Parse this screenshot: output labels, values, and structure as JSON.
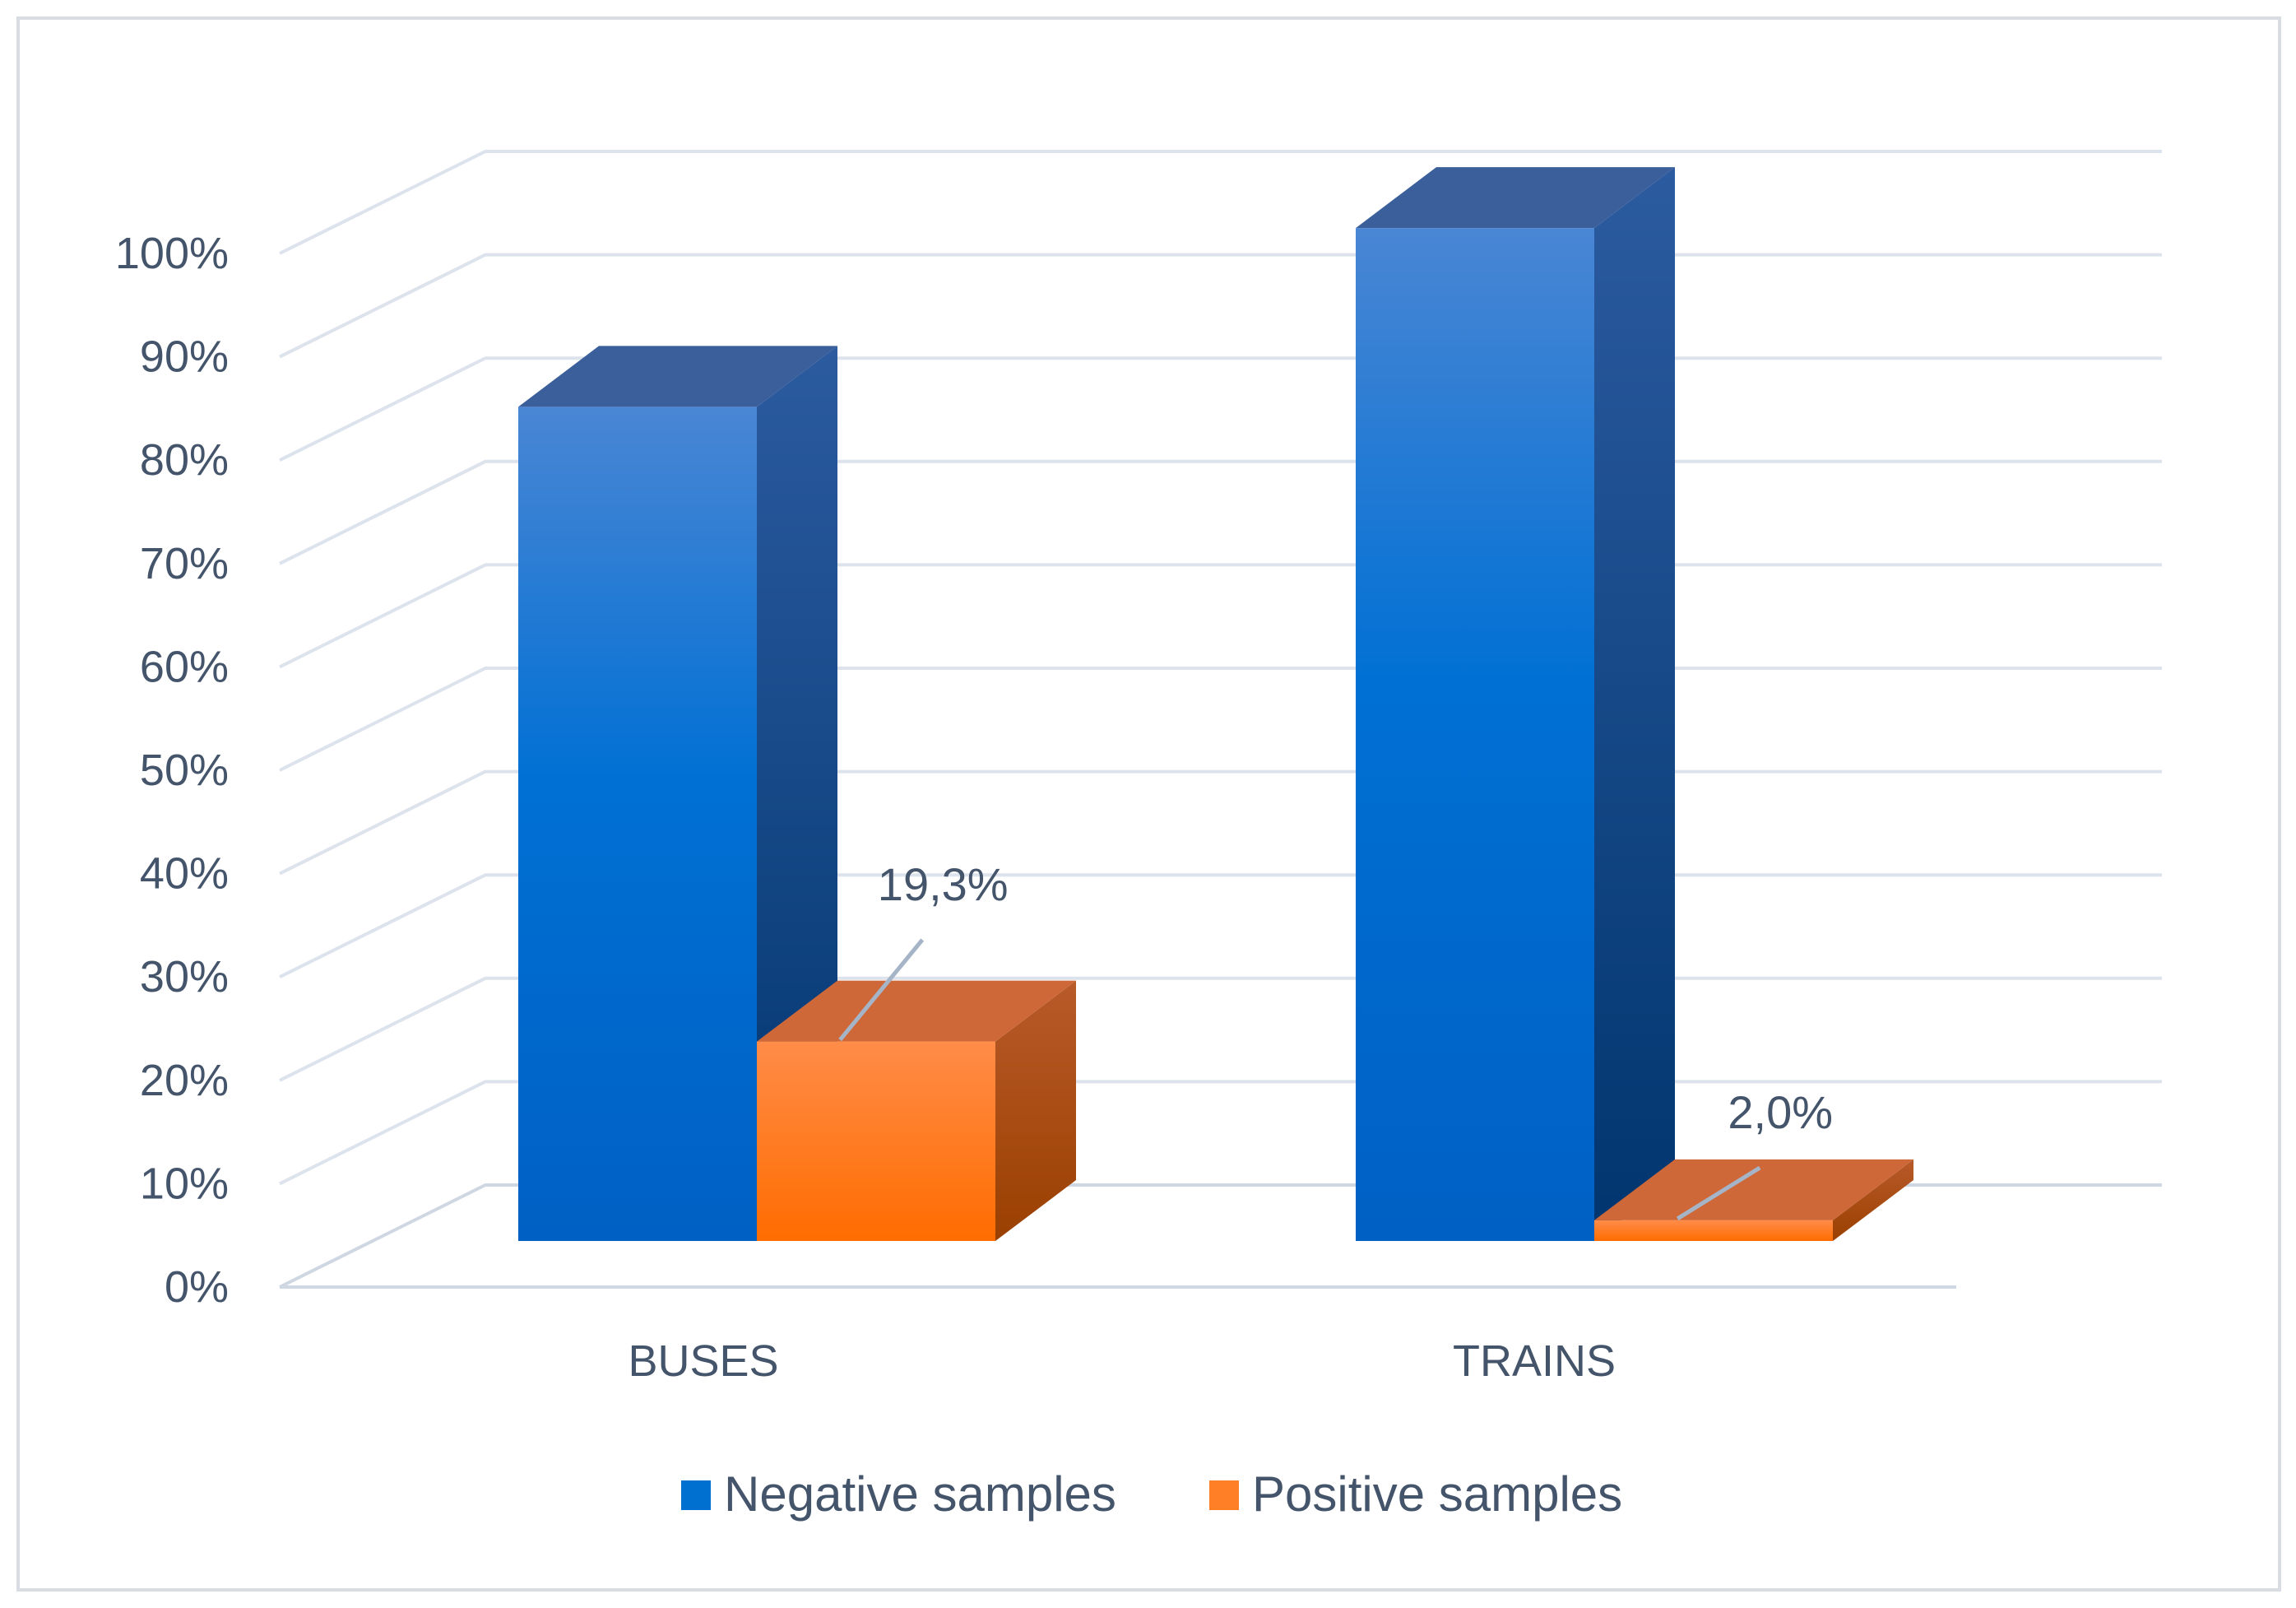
{
  "chart_data": {
    "type": "bar",
    "categories": [
      "BUSES",
      "TRAINS"
    ],
    "series": [
      {
        "name": "Negative samples",
        "values": [
          80.7,
          98.0
        ],
        "color": "#0070d0"
      },
      {
        "name": "Positive samples",
        "values": [
          19.3,
          2.0
        ],
        "color": "#ff7f27"
      }
    ],
    "data_labels": {
      "Positive samples": [
        "19,3%",
        "2,0%"
      ]
    },
    "y_ticks": [
      "0%",
      "10%",
      "20%",
      "30%",
      "40%",
      "50%",
      "60%",
      "70%",
      "80%",
      "90%",
      "100%"
    ],
    "ylim": [
      0,
      100
    ],
    "grid": true,
    "legend_position": "bottom",
    "style": "3d-clustered-column"
  }
}
